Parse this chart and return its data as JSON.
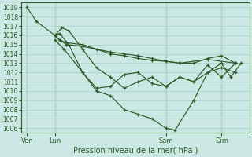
{
  "bg_color": "#cce8e4",
  "grid_color": "#b0d8d2",
  "line_color": "#2d5a27",
  "marker_color": "#2d5a27",
  "xlabel": "Pression niveau de la mer( hPa )",
  "ylim": [
    1005.5,
    1019.5
  ],
  "yticks": [
    1006,
    1007,
    1008,
    1009,
    1010,
    1011,
    1012,
    1013,
    1014,
    1015,
    1016,
    1017,
    1018,
    1019
  ],
  "xtick_labels": [
    "Ven",
    "Lun",
    "Sam",
    "Dim"
  ],
  "xtick_positions": [
    0,
    24,
    120,
    168
  ],
  "xlim": [
    -5,
    192
  ],
  "series": [
    {
      "x": [
        0,
        8,
        24,
        28,
        34,
        48,
        60,
        72,
        84,
        96,
        108,
        120,
        132,
        156,
        180
      ],
      "y": [
        1019,
        1017.5,
        1016,
        1015.5,
        1015,
        1014.8,
        1014.5,
        1014.2,
        1014,
        1013.8,
        1013.5,
        1013.2,
        1013,
        1013.4,
        1013
      ]
    },
    {
      "x": [
        24,
        28,
        34,
        48,
        60,
        72,
        84,
        96,
        108,
        120,
        132,
        144,
        156,
        168,
        180
      ],
      "y": [
        1016,
        1015.5,
        1015.2,
        1015,
        1014.5,
        1014,
        1013.8,
        1013.5,
        1013.3,
        1013.2,
        1013,
        1013,
        1013.5,
        1013.8,
        1013
      ]
    },
    {
      "x": [
        24,
        30,
        36,
        48,
        60,
        72,
        84,
        96,
        108,
        120,
        132,
        144,
        156,
        168,
        180
      ],
      "y": [
        1016,
        1016.8,
        1016.5,
        1014.5,
        1012.5,
        1011.5,
        1010.3,
        1011,
        1011.5,
        1010.5,
        1011.5,
        1011,
        1012,
        1012.5,
        1012
      ]
    },
    {
      "x": [
        24,
        28,
        36,
        48,
        60,
        72,
        84,
        96,
        108,
        120,
        132,
        144,
        156,
        168,
        180
      ],
      "y": [
        1016,
        1016.2,
        1015,
        1012,
        1010.3,
        1010.5,
        1011.8,
        1012,
        1010.8,
        1010.5,
        1011.5,
        1011,
        1012.8,
        1011.5,
        1013
      ]
    },
    {
      "x": [
        24,
        32,
        48,
        60,
        72,
        84,
        96,
        108,
        120,
        128,
        144,
        156,
        168,
        176,
        185
      ],
      "y": [
        1015.5,
        1014.5,
        1012,
        1010,
        1009.5,
        1008,
        1007.5,
        1007,
        1006,
        1005.8,
        1009,
        1012,
        1013,
        1011.5,
        1013
      ]
    }
  ],
  "vlines": [
    0,
    24,
    120,
    168
  ],
  "vline_color": "#2d5a27",
  "tick_color": "#2d5a27",
  "label_fontsize": 6.0,
  "ytick_fontsize": 5.5,
  "xlabel_fontsize": 7.0
}
